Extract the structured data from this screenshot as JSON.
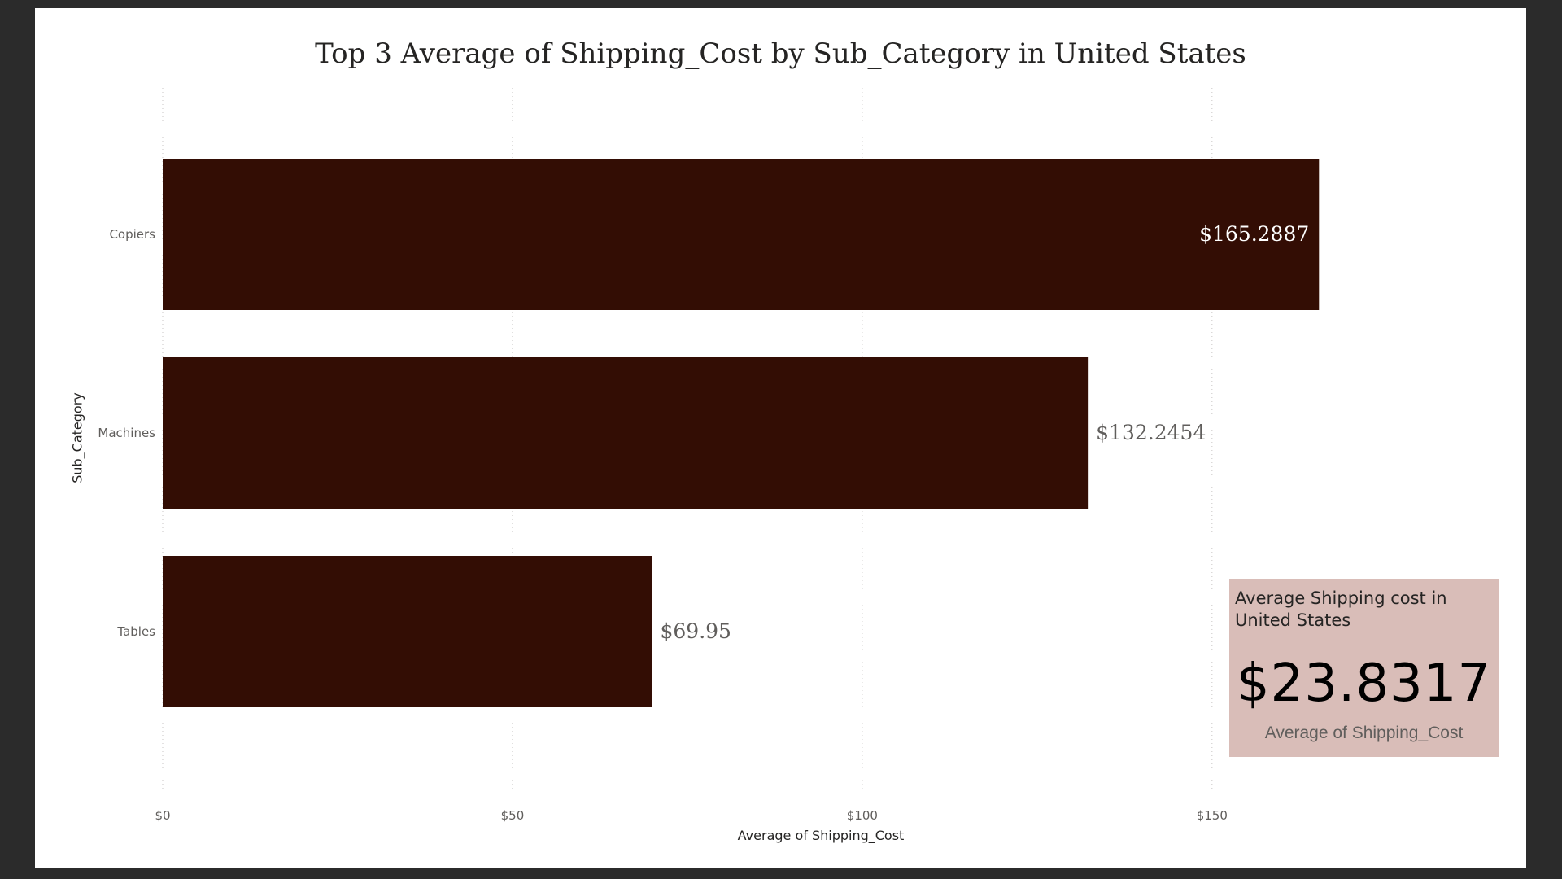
{
  "chart_data": {
    "type": "bar",
    "orientation": "horizontal",
    "title": "Top 3 Average of Shipping_Cost by Sub_Category in United States",
    "xlabel": "Average of Shipping_Cost",
    "ylabel": "Sub_Category",
    "categories": [
      "Copiers",
      "Machines",
      "Tables"
    ],
    "values": [
      165.2887,
      132.2454,
      69.95
    ],
    "data_labels": [
      "$165.2887",
      "$132.2454",
      "$69.95"
    ],
    "x_ticks": [
      0,
      50,
      100,
      150
    ],
    "x_tick_labels": [
      "$0",
      "$50",
      "$100",
      "$150"
    ],
    "xlim": [
      0,
      172
    ],
    "grid": "vertical dotted",
    "bar_color": "#330d04"
  },
  "kpi": {
    "title": "Average Shipping cost in United States",
    "value": "$23.8317",
    "subtitle": "Average of Shipping_Cost",
    "background": "#d9bdb8"
  },
  "colors": {
    "frame": "#2b2b2b",
    "canvas": "#ffffff",
    "label_inside": "#ffffff",
    "label_outside": "#605e5c",
    "axis_text": "#605e5c"
  }
}
